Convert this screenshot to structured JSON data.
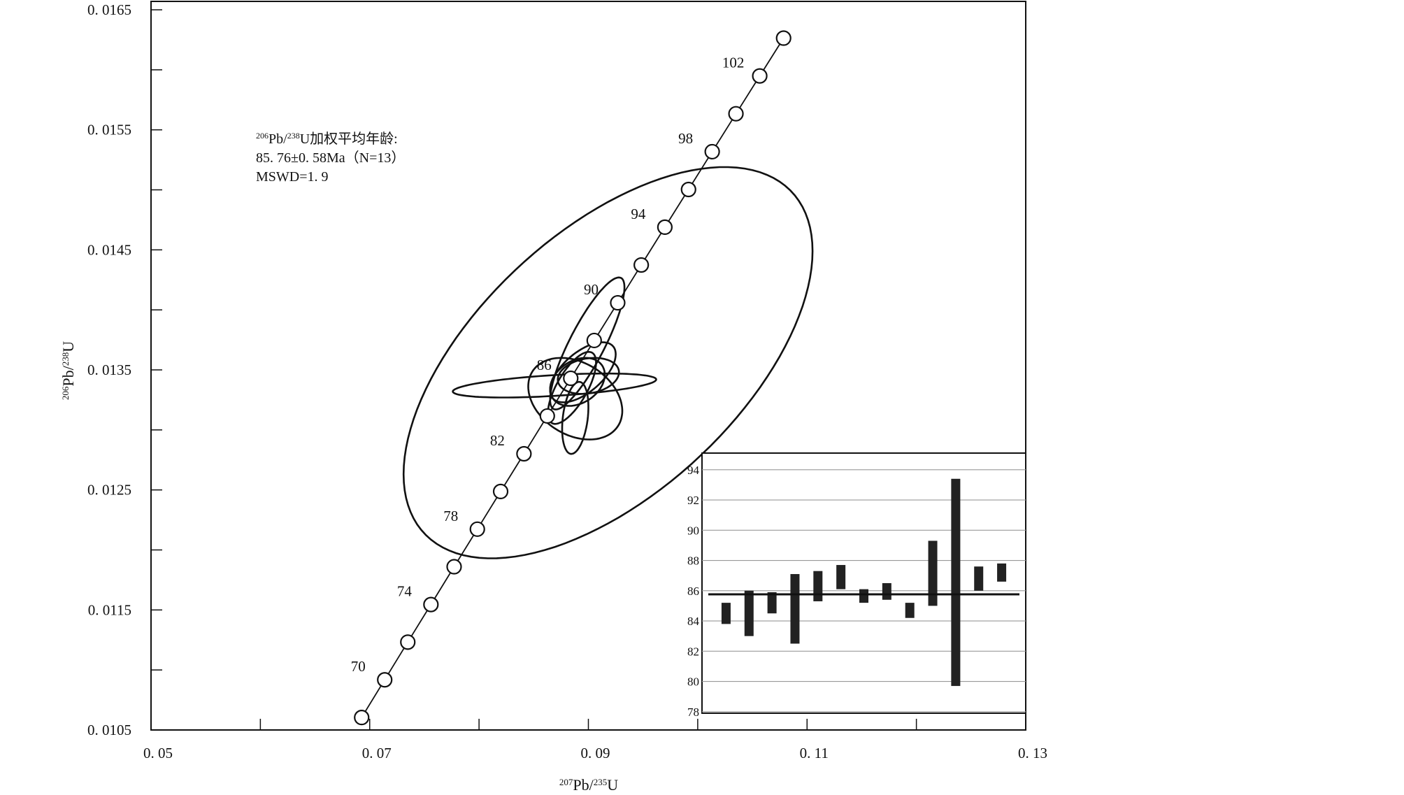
{
  "chart_data": [
    {
      "type": "scatter",
      "xlim": [
        0.05,
        0.13
      ],
      "ylim": [
        0.0105,
        0.01657
      ],
      "xticks": [
        {
          "value": 0.05,
          "label": "0. 05"
        },
        {
          "value": 0.07,
          "label": "0. 07"
        },
        {
          "value": 0.09,
          "label": "0. 09"
        },
        {
          "value": 0.11,
          "label": "0. 11"
        },
        {
          "value": 0.13,
          "label": "0. 13"
        }
      ],
      "yticks": [
        {
          "value": 0.0105,
          "label": "0. 0105"
        },
        {
          "value": 0.0115,
          "label": "0. 0115"
        },
        {
          "value": 0.0125,
          "label": "0. 0125"
        },
        {
          "value": 0.0135,
          "label": "0. 0135"
        },
        {
          "value": 0.0145,
          "label": "0. 0145"
        },
        {
          "value": 0.0155,
          "label": "0. 0155"
        },
        {
          "value": 0.0165,
          "label": "0. 0165"
        }
      ],
      "minor_xticks": [
        0.06,
        0.08,
        0.1,
        0.12
      ],
      "minor_yticks": [
        0.011,
        0.012,
        0.013,
        0.014,
        0.015,
        0.016
      ],
      "xlabel": [
        {
          "text": "207",
          "sup": true
        },
        {
          "text": "Pb/"
        },
        {
          "text": "235",
          "sup": true
        },
        {
          "text": "U"
        }
      ],
      "ylabel": [
        {
          "text": "206",
          "sup": true
        },
        {
          "text": "Pb/"
        },
        {
          "text": "238",
          "sup": true
        },
        {
          "text": "U"
        }
      ],
      "annotation": [
        [
          {
            "text": "206",
            "sup": true
          },
          {
            "text": "Pb/"
          },
          {
            "text": "238",
            "sup": true
          },
          {
            "text": "U加权平均年龄:"
          }
        ],
        [
          {
            "text": "85. 76±0. 58Ma（N=13）"
          }
        ],
        [
          {
            "text": "MSWD=1. 9"
          }
        ]
      ],
      "x": [
        0.069263,
        0.071372,
        0.073484,
        0.0756,
        0.077721,
        0.079846,
        0.081975,
        0.084108,
        0.086245,
        0.088387,
        0.090533,
        0.092683,
        0.094837,
        0.096996,
        0.09916,
        0.101327,
        0.103497,
        0.105673,
        0.107855
      ],
      "y": [
        0.010604,
        0.010918,
        0.011232,
        0.011545,
        0.01186,
        0.012173,
        0.012487,
        0.012801,
        0.013116,
        0.01343,
        0.013745,
        0.014059,
        0.014374,
        0.014689,
        0.015003,
        0.015318,
        0.015634,
        0.015949,
        0.016264
      ],
      "point_labels": [
        null,
        "70",
        null,
        "74",
        null,
        "78",
        null,
        "82",
        null,
        "86",
        null,
        "90",
        null,
        "94",
        null,
        "98",
        null,
        "102",
        null
      ],
      "ellipses": [
        {
          "x": 0.0918,
          "y": 0.01356,
          "sx": 0.0187,
          "sy": 0.00163,
          "rho": 0.57
        },
        {
          "x": 0.0869,
          "y": 0.01337,
          "sx": 0.0093,
          "sy": 0.0001,
          "rho": 0.5
        },
        {
          "x": 0.0899,
          "y": 0.01372,
          "sx": 0.0034,
          "sy": 0.00055,
          "rho": 0.85
        },
        {
          "x": 0.0888,
          "y": 0.01326,
          "sx": 0.0043,
          "sy": 0.00034,
          "rho": -0.3
        },
        {
          "x": 0.0895,
          "y": 0.01348,
          "sx": 0.003,
          "sy": 0.00025,
          "rho": 0.6
        },
        {
          "x": 0.089,
          "y": 0.0134,
          "sx": 0.0025,
          "sy": 0.0002,
          "rho": 0.3
        },
        {
          "x": 0.0885,
          "y": 0.01335,
          "sx": 0.0022,
          "sy": 0.0003,
          "rho": 0.7
        },
        {
          "x": 0.09,
          "y": 0.01345,
          "sx": 0.0028,
          "sy": 0.00015,
          "rho": 0.2
        },
        {
          "x": 0.0888,
          "y": 0.0131,
          "sx": 0.0012,
          "sy": 0.0003,
          "rho": 0.3
        }
      ]
    },
    {
      "type": "bar",
      "ylim": [
        77.9,
        95.1
      ],
      "yticks": [
        78,
        80,
        82,
        84,
        86,
        88,
        90,
        92,
        94
      ],
      "grid": true,
      "color": "#222222",
      "low": [
        83.8,
        83.0,
        84.5,
        82.5,
        85.3,
        86.1,
        85.2,
        85.4,
        84.2,
        85.0,
        79.7,
        86.0,
        86.6
      ],
      "high": [
        85.2,
        86.0,
        85.9,
        87.1,
        87.3,
        87.7,
        86.1,
        86.5,
        85.2,
        89.3,
        93.4,
        87.6,
        87.8
      ],
      "mean": 85.76
    }
  ]
}
